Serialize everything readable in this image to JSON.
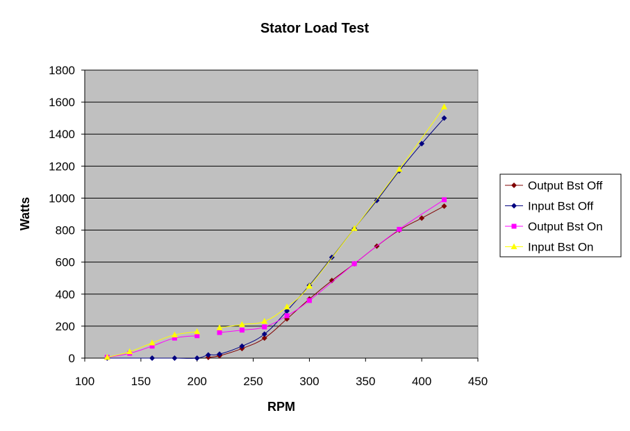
{
  "chart_data": {
    "type": "line",
    "title": "Stator Load Test",
    "xlabel": "RPM",
    "ylabel": "Watts",
    "xlim": [
      100,
      450
    ],
    "ylim": [
      0,
      1800
    ],
    "xticks": [
      100,
      150,
      200,
      250,
      300,
      350,
      400,
      450
    ],
    "yticks": [
      0,
      200,
      400,
      600,
      800,
      1000,
      1200,
      1400,
      1600,
      1800
    ],
    "grid": "horizontal",
    "plot_background": "#C0C0C0",
    "legend_position": "right",
    "series": [
      {
        "name": "Output Bst Off",
        "color": "#800000",
        "marker": "diamond",
        "x": [
          210,
          220,
          240,
          260,
          280,
          300,
          320,
          340,
          360,
          380,
          400,
          420
        ],
        "y": [
          5,
          15,
          60,
          125,
          245,
          370,
          485,
          590,
          700,
          800,
          875,
          950
        ]
      },
      {
        "name": "Input Bst Off",
        "color": "#000080",
        "marker": "diamond",
        "x": [
          120,
          160,
          180,
          200,
          210,
          220,
          240,
          260,
          280,
          300,
          320,
          340,
          360,
          380,
          400,
          420
        ],
        "y": [
          0,
          0,
          0,
          0,
          20,
          25,
          75,
          150,
          295,
          455,
          630,
          810,
          985,
          1170,
          1340,
          1500
        ]
      },
      {
        "name": "Output Bst On",
        "color": "#FF00FF",
        "marker": "square",
        "segments": [
          {
            "x": [
              120,
              140,
              160,
              180,
              200
            ],
            "y": [
              5,
              30,
              75,
              125,
              140
            ]
          },
          {
            "x": [
              220,
              240,
              260,
              280,
              300,
              340,
              380,
              420
            ],
            "y": [
              160,
              175,
              195,
              265,
              360,
              590,
              805,
              990
            ]
          }
        ]
      },
      {
        "name": "Input Bst On",
        "color": "#FFFF00",
        "marker": "triangle",
        "segments": [
          {
            "x": [
              120,
              140,
              160,
              180,
              200
            ],
            "y": [
              5,
              40,
              95,
              145,
              165
            ]
          },
          {
            "x": [
              220,
              240,
              260,
              280,
              300,
              340,
              380,
              420
            ],
            "y": [
              190,
              210,
              230,
              320,
              450,
              810,
              1180,
              1570
            ]
          }
        ]
      }
    ]
  }
}
